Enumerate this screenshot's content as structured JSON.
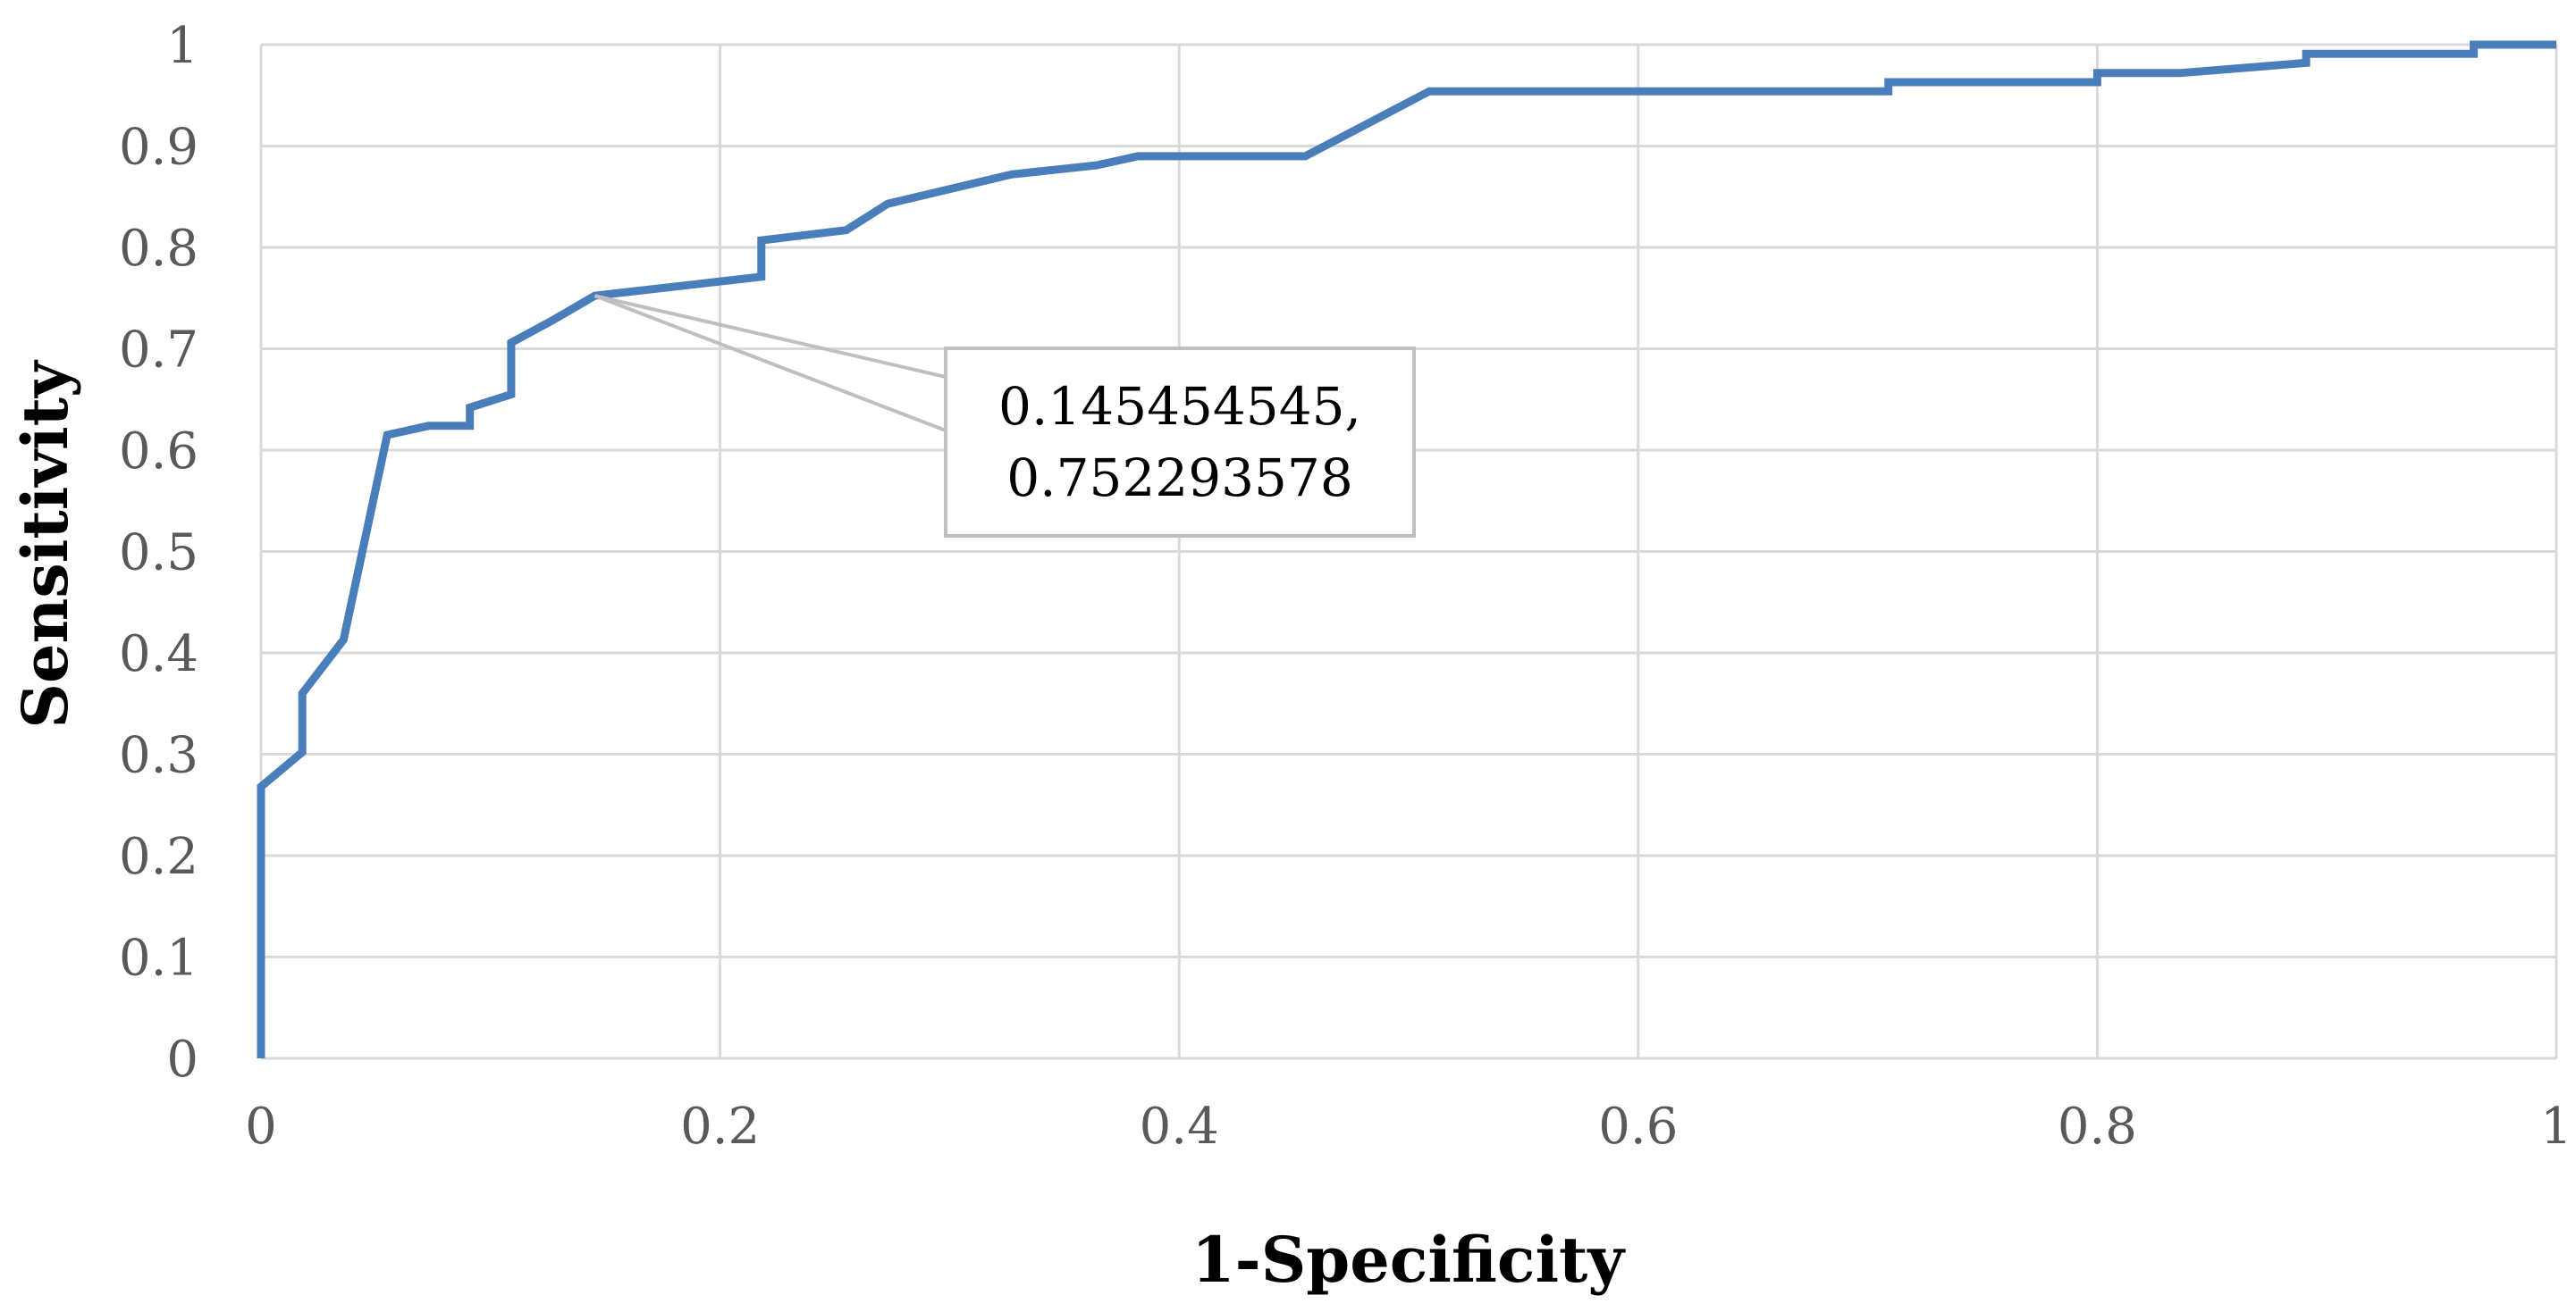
{
  "chart_data": {
    "type": "line",
    "title": "",
    "xlabel": "1-Specificity",
    "ylabel": "Sensitivity",
    "xlim": [
      0,
      1
    ],
    "ylim": [
      0,
      1
    ],
    "x_ticks": [
      "0",
      "0.2",
      "0.4",
      "0.6",
      "0.8",
      "1"
    ],
    "y_ticks": [
      "0",
      "0.1",
      "0.2",
      "0.3",
      "0.4",
      "0.5",
      "0.6",
      "0.7",
      "0.8",
      "0.9",
      "1"
    ],
    "grid": true,
    "legend": "none",
    "series": [
      {
        "color": "#4a7ebb",
        "points": [
          [
            0,
            0
          ],
          [
            0,
            0.268
          ],
          [
            0.018,
            0.302
          ],
          [
            0.018,
            0.36
          ],
          [
            0.036,
            0.413
          ],
          [
            0.055,
            0.615
          ],
          [
            0.073,
            0.624
          ],
          [
            0.091,
            0.624
          ],
          [
            0.091,
            0.642
          ],
          [
            0.109,
            0.655
          ],
          [
            0.109,
            0.706
          ],
          [
            0.127,
            0.728
          ],
          [
            0.145454545,
            0.752293578
          ],
          [
            0.218,
            0.771
          ],
          [
            0.218,
            0.807
          ],
          [
            0.255,
            0.817
          ],
          [
            0.273,
            0.843
          ],
          [
            0.327,
            0.872
          ],
          [
            0.364,
            0.881
          ],
          [
            0.382,
            0.89
          ],
          [
            0.455,
            0.89
          ],
          [
            0.509,
            0.954
          ],
          [
            0.709,
            0.954
          ],
          [
            0.709,
            0.963
          ],
          [
            0.8,
            0.963
          ],
          [
            0.8,
            0.972
          ],
          [
            0.836,
            0.972
          ],
          [
            0.891,
            0.982
          ],
          [
            0.891,
            0.991
          ],
          [
            0.964,
            0.991
          ],
          [
            0.964,
            1.0
          ],
          [
            1.0,
            1.0
          ]
        ]
      }
    ],
    "annotation": {
      "point": [
        0.145454545,
        0.752293578
      ],
      "line1": "0.145454545,",
      "line2": "0.752293578"
    }
  }
}
